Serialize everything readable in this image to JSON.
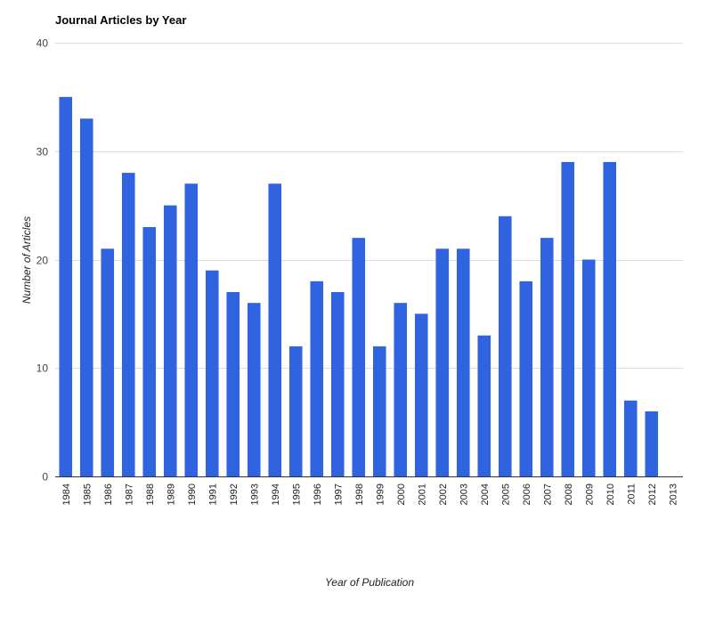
{
  "chart_data": {
    "type": "bar",
    "title": "Journal Articles by Year",
    "xlabel": "Year of Publication",
    "ylabel": "Number of Articles",
    "ylim": [
      0,
      40
    ],
    "yticks": [
      0,
      10,
      20,
      30,
      40
    ],
    "grid": true,
    "bar_color": "#2f63e0",
    "categories": [
      "1984",
      "1985",
      "1986",
      "1987",
      "1988",
      "1989",
      "1990",
      "1991",
      "1992",
      "1993",
      "1994",
      "1995",
      "1996",
      "1997",
      "1998",
      "1999",
      "2000",
      "2001",
      "2002",
      "2003",
      "2004",
      "2005",
      "2006",
      "2007",
      "2008",
      "2009",
      "2010",
      "2011",
      "2012",
      "2013"
    ],
    "values": [
      35,
      33,
      21,
      28,
      23,
      25,
      27,
      19,
      17,
      16,
      27,
      12,
      18,
      17,
      22,
      12,
      16,
      15,
      21,
      21,
      13,
      24,
      18,
      22,
      29,
      20,
      29,
      7,
      6,
      0
    ]
  }
}
